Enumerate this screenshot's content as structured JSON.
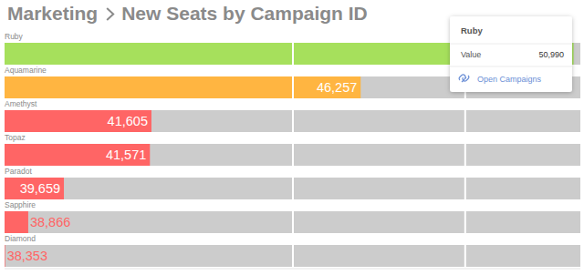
{
  "chart_data": {
    "type": "bar",
    "orientation": "horizontal",
    "breadcrumb": "Marketing",
    "title": "New Seats by Campaign ID",
    "categories": [
      "Ruby",
      "Aquamarine",
      "Amethyst",
      "Topaz",
      "Paradot",
      "Sapphire",
      "Diamond"
    ],
    "values": [
      50990,
      46257,
      41605,
      41571,
      39659,
      38866,
      38353
    ],
    "value_labels": [
      "50,990",
      "46,257",
      "41,605",
      "41,571",
      "39,659",
      "38,866",
      "38,353"
    ],
    "colors": [
      "#a6e05c",
      "#ffb541",
      "#ff6565",
      "#ff6565",
      "#ff6565",
      "#ff6565",
      "#ff6565"
    ],
    "xlim": [
      38340,
      51140
    ],
    "xticks": [
      44750,
      48580
    ],
    "grid": true,
    "data_labels": true,
    "tick_labels": false,
    "tooltip": {
      "label": "Value",
      "link": "Open Campaigns"
    }
  }
}
